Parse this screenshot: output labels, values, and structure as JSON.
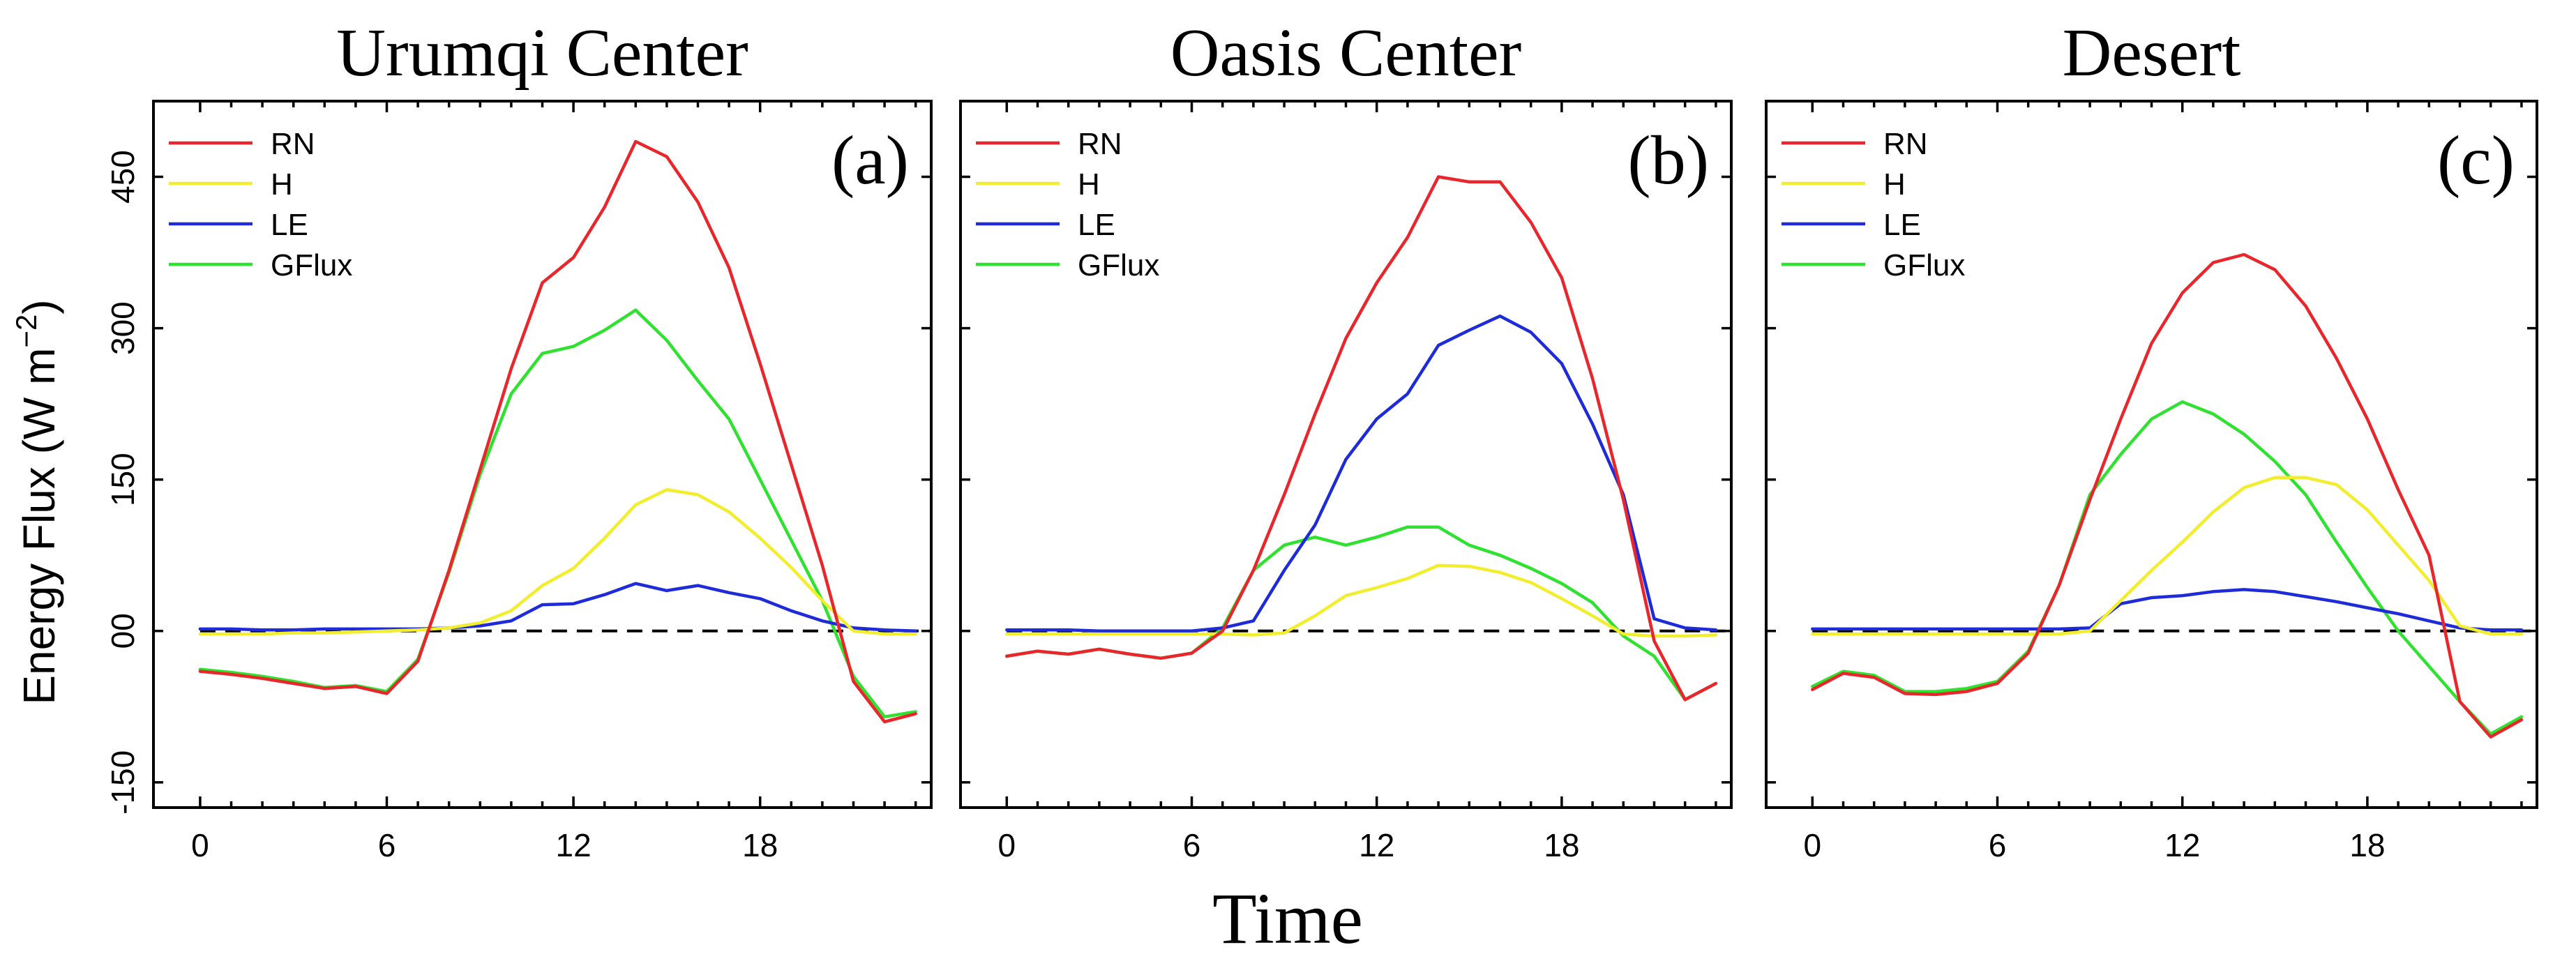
{
  "colors": {
    "RN": "#e8262b",
    "H": "#f2ee2e",
    "LE": "#1e2bd8",
    "GFlux": "#2fe22f",
    "baseline": "#000000"
  },
  "ylabel": "Energy Flux (W m",
  "ylabel_sup": "−2",
  "ylabel_close": ")",
  "xlabel": "Time",
  "chart_data": [
    {
      "type": "line",
      "title": "Urumqi Center",
      "panel_label": "(a)",
      "xlabel": "Time",
      "ylabel": "Energy Flux (W m−2)",
      "xlim": [
        -1.5,
        23.5
      ],
      "ylim": [
        -175,
        525
      ],
      "xticks": [
        0,
        6,
        12,
        18
      ],
      "xtick_labels": [
        "0",
        "6",
        "12",
        "18"
      ],
      "yticks": [
        -150,
        0,
        150,
        300,
        450
      ],
      "ytick_labels": [
        "-150",
        "00",
        "150",
        "300",
        "450"
      ],
      "x": [
        0,
        1,
        2,
        3,
        4,
        5,
        6,
        7,
        8,
        9,
        10,
        11,
        12,
        13,
        14,
        15,
        16,
        17,
        18,
        19,
        20,
        21,
        22,
        23
      ],
      "baseline": 0,
      "legend_position": "top-left",
      "series": [
        {
          "name": "RN",
          "values": [
            -40,
            -43,
            -47,
            -52,
            -57,
            -55,
            -62,
            -30,
            60,
            160,
            260,
            345,
            370,
            420,
            485,
            470,
            425,
            360,
            265,
            165,
            65,
            -50,
            -90,
            -82
          ]
        },
        {
          "name": "H",
          "values": [
            -3,
            -3,
            -3,
            -2,
            -2,
            -1,
            0,
            1,
            3,
            8,
            20,
            45,
            62,
            92,
            125,
            140,
            135,
            118,
            92,
            63,
            30,
            0,
            -3,
            -3
          ]
        },
        {
          "name": "LE",
          "values": [
            2,
            2,
            1,
            1,
            2,
            2,
            2,
            2,
            3,
            5,
            10,
            26,
            27,
            36,
            47,
            40,
            45,
            38,
            32,
            20,
            10,
            3,
            1,
            0
          ]
        },
        {
          "name": "GFlux",
          "values": [
            -38,
            -41,
            -45,
            -50,
            -56,
            -54,
            -60,
            -28,
            58,
            155,
            235,
            275,
            282,
            298,
            318,
            288,
            248,
            210,
            150,
            90,
            30,
            -45,
            -85,
            -80
          ]
        }
      ]
    },
    {
      "type": "line",
      "title": "Oasis Center",
      "panel_label": "(b)",
      "xlabel": "Time",
      "ylabel": "Energy Flux (W m−2)",
      "xlim": [
        -1.5,
        23.5
      ],
      "ylim": [
        -175,
        525
      ],
      "xticks": [
        0,
        6,
        12,
        18
      ],
      "xtick_labels": [
        "0",
        "6",
        "12",
        "18"
      ],
      "yticks": [
        -150,
        0,
        150,
        300,
        450
      ],
      "ytick_labels": [
        "-150",
        "00",
        "150",
        "300",
        "450"
      ],
      "x": [
        0,
        1,
        2,
        3,
        4,
        5,
        6,
        7,
        8,
        9,
        10,
        11,
        12,
        13,
        14,
        15,
        16,
        17,
        18,
        19,
        20,
        21,
        22,
        23
      ],
      "baseline": 0,
      "legend_position": "top-left",
      "series": [
        {
          "name": "RN",
          "values": [
            -25,
            -20,
            -23,
            -18,
            -23,
            -27,
            -22,
            0,
            60,
            135,
            215,
            290,
            345,
            390,
            450,
            445,
            445,
            405,
            350,
            250,
            130,
            -10,
            -68,
            -52
          ]
        },
        {
          "name": "H",
          "values": [
            -3,
            -3,
            -3,
            -3,
            -3,
            -3,
            -3,
            -3,
            -4,
            -2,
            15,
            35,
            43,
            52,
            65,
            64,
            58,
            48,
            32,
            15,
            -3,
            -5,
            -5,
            -4
          ]
        },
        {
          "name": "LE",
          "values": [
            1,
            1,
            1,
            0,
            0,
            0,
            0,
            3,
            10,
            60,
            105,
            170,
            210,
            235,
            283,
            298,
            312,
            296,
            265,
            205,
            135,
            12,
            3,
            1
          ]
        },
        {
          "name": "GFlux",
          "values": [
            -25,
            -20,
            -23,
            -18,
            -23,
            -27,
            -22,
            3,
            60,
            85,
            93,
            85,
            93,
            103,
            103,
            85,
            75,
            62,
            47,
            28,
            -5,
            -25,
            -68,
            -52
          ]
        }
      ]
    },
    {
      "type": "line",
      "title": "Desert",
      "panel_label": "(c)",
      "xlabel": "Time",
      "ylabel": "Energy Flux (W m−2)",
      "xlim": [
        -1.5,
        23.5
      ],
      "ylim": [
        -175,
        525
      ],
      "xticks": [
        0,
        6,
        12,
        18
      ],
      "xtick_labels": [
        "0",
        "6",
        "12",
        "18"
      ],
      "yticks": [
        -150,
        0,
        150,
        300,
        450
      ],
      "ytick_labels": [
        "-150",
        "00",
        "150",
        "300",
        "450"
      ],
      "x": [
        0,
        1,
        2,
        3,
        4,
        5,
        6,
        7,
        8,
        9,
        10,
        11,
        12,
        13,
        14,
        15,
        16,
        17,
        18,
        19,
        20,
        21,
        22,
        23
      ],
      "baseline": 0,
      "legend_position": "top-left",
      "series": [
        {
          "name": "RN",
          "values": [
            -58,
            -42,
            -46,
            -62,
            -63,
            -60,
            -52,
            -22,
            45,
            130,
            210,
            285,
            335,
            365,
            373,
            358,
            322,
            270,
            210,
            140,
            75,
            -70,
            -105,
            -88
          ]
        },
        {
          "name": "H",
          "values": [
            -3,
            -3,
            -3,
            -3,
            -3,
            -3,
            -3,
            -3,
            -3,
            0,
            30,
            60,
            88,
            118,
            142,
            152,
            152,
            145,
            120,
            85,
            50,
            5,
            -3,
            -3
          ]
        },
        {
          "name": "LE",
          "values": [
            2,
            2,
            2,
            2,
            2,
            2,
            2,
            2,
            2,
            3,
            27,
            33,
            35,
            39,
            41,
            39,
            34,
            29,
            23,
            17,
            10,
            3,
            1,
            1
          ]
        },
        {
          "name": "GFlux",
          "values": [
            -55,
            -40,
            -44,
            -60,
            -60,
            -57,
            -50,
            -20,
            45,
            135,
            175,
            210,
            227,
            215,
            195,
            168,
            135,
            88,
            43,
            0,
            -35,
            -70,
            -102,
            -85
          ]
        }
      ]
    }
  ]
}
